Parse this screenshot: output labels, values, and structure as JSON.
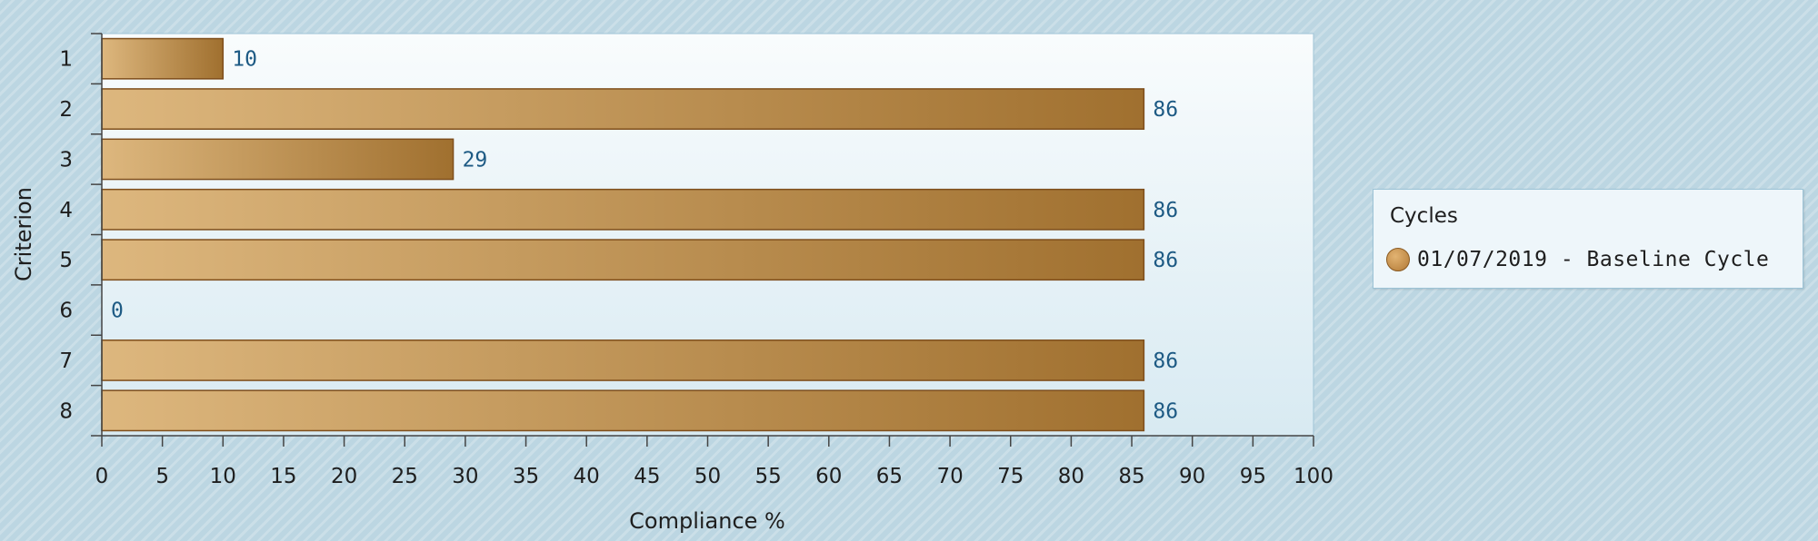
{
  "chart_data": {
    "type": "bar",
    "orientation": "horizontal",
    "categories": [
      "1",
      "2",
      "3",
      "4",
      "5",
      "6",
      "7",
      "8"
    ],
    "series": [
      {
        "name": "01/07/2019 - Baseline Cycle",
        "values": [
          10,
          86,
          29,
          86,
          86,
          0,
          86,
          86
        ]
      }
    ],
    "xlabel": "Compliance %",
    "ylabel": "Criterion",
    "xlim": [
      0,
      100
    ],
    "xticks": [
      "0",
      "5",
      "10",
      "15",
      "20",
      "25",
      "30",
      "35",
      "40",
      "45",
      "50",
      "55",
      "60",
      "65",
      "70",
      "75",
      "80",
      "85",
      "90",
      "95",
      "100"
    ],
    "legend": {
      "title": "Cycles",
      "position": "right"
    },
    "colors": {
      "bar_light": "#ddb77e",
      "bar_dark": "#a0702f",
      "bar_border": "#7e4e1c",
      "label": "#1d5a84"
    }
  }
}
